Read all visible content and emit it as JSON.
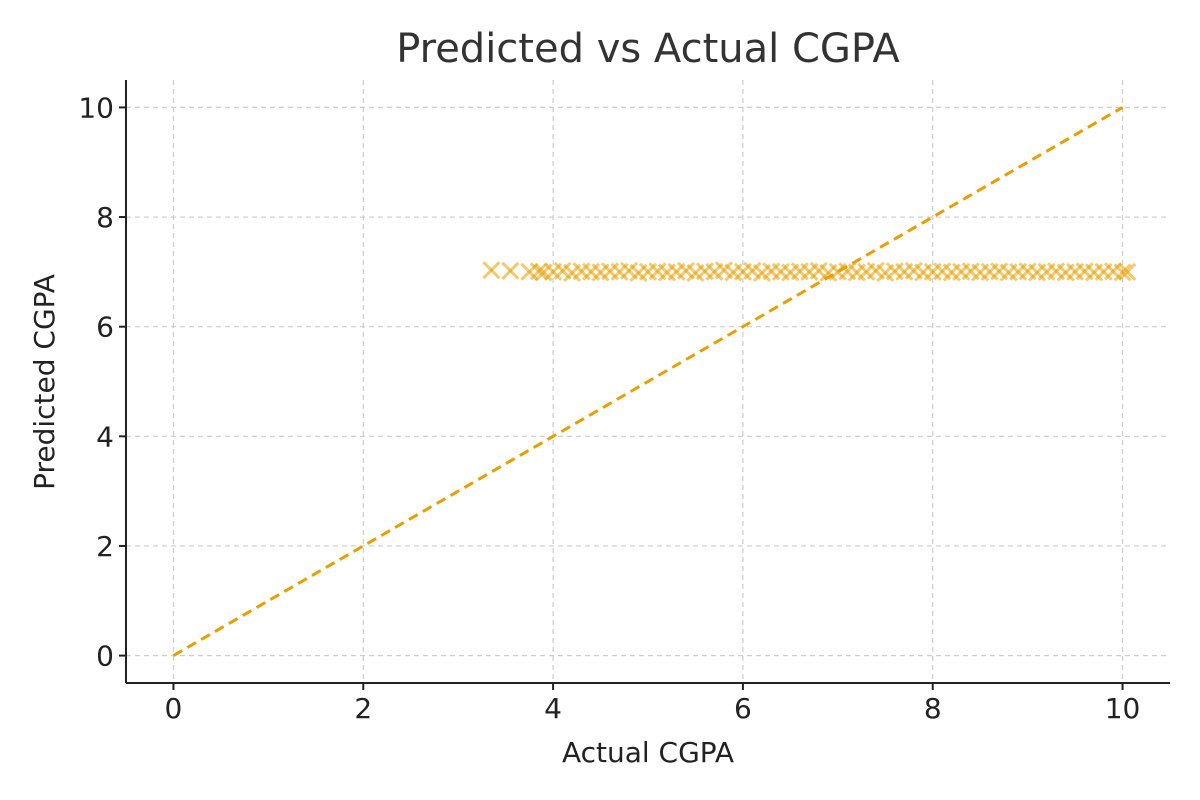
{
  "chart_data": {
    "type": "scatter",
    "title": "Predicted vs Actual CGPA",
    "xlabel": "Actual CGPA",
    "ylabel": "Predicted CGPA",
    "xlim": [
      -0.5,
      10.5
    ],
    "ylim": [
      -0.5,
      10.5
    ],
    "xticks": [
      0,
      2,
      4,
      6,
      8,
      10
    ],
    "yticks": [
      0,
      2,
      4,
      6,
      8,
      10
    ],
    "grid": true,
    "marker": "x",
    "color": "#E69F00",
    "series": [
      {
        "points": [
          [
            3.35,
            7.03
          ],
          [
            3.55,
            7.02
          ],
          [
            3.75,
            7.0
          ],
          [
            3.85,
            7.01
          ],
          [
            3.9,
            6.99
          ],
          [
            4.0,
            7.0
          ],
          [
            4.1,
            7.02
          ],
          [
            4.2,
            6.98
          ],
          [
            4.3,
            7.01
          ],
          [
            4.4,
            7.0
          ],
          [
            4.5,
            6.99
          ],
          [
            4.6,
            7.01
          ],
          [
            4.7,
            7.0
          ],
          [
            4.8,
            7.02
          ],
          [
            4.9,
            6.98
          ],
          [
            5.0,
            7.0
          ],
          [
            5.1,
            7.01
          ],
          [
            5.2,
            6.99
          ],
          [
            5.3,
            7.0
          ],
          [
            5.4,
            7.02
          ],
          [
            5.5,
            6.98
          ],
          [
            5.6,
            7.01
          ],
          [
            5.7,
            7.0
          ],
          [
            5.8,
            7.03
          ],
          [
            5.9,
            6.99
          ],
          [
            6.0,
            7.0
          ],
          [
            6.1,
            7.02
          ],
          [
            6.2,
            6.98
          ],
          [
            6.3,
            7.01
          ],
          [
            6.4,
            7.0
          ],
          [
            6.5,
            6.99
          ],
          [
            6.6,
            7.01
          ],
          [
            6.7,
            7.0
          ],
          [
            6.8,
            7.02
          ],
          [
            6.9,
            6.98
          ],
          [
            7.0,
            7.0
          ],
          [
            7.1,
            7.01
          ],
          [
            7.2,
            6.99
          ],
          [
            7.3,
            7.0
          ],
          [
            7.4,
            7.02
          ],
          [
            7.5,
            6.98
          ],
          [
            7.6,
            7.01
          ],
          [
            7.7,
            7.0
          ],
          [
            7.8,
            7.02
          ],
          [
            7.9,
            6.99
          ],
          [
            8.0,
            7.0
          ],
          [
            8.1,
            7.01
          ],
          [
            8.2,
            6.99
          ],
          [
            8.3,
            7.0
          ],
          [
            8.4,
            7.01
          ],
          [
            8.5,
            6.99
          ],
          [
            8.6,
            7.0
          ],
          [
            8.7,
            7.01
          ],
          [
            8.8,
            6.99
          ],
          [
            8.9,
            7.0
          ],
          [
            9.0,
            7.01
          ],
          [
            9.1,
            6.99
          ],
          [
            9.2,
            7.0
          ],
          [
            9.3,
            7.01
          ],
          [
            9.4,
            6.99
          ],
          [
            9.5,
            7.0
          ],
          [
            9.6,
            7.01
          ],
          [
            9.7,
            6.99
          ],
          [
            9.8,
            7.0
          ],
          [
            9.9,
            7.01
          ],
          [
            10.0,
            6.99
          ],
          [
            10.05,
            7.0
          ]
        ]
      }
    ],
    "reference_line": {
      "style": "dashed",
      "from": [
        0,
        0
      ],
      "to": [
        10,
        10
      ]
    }
  }
}
